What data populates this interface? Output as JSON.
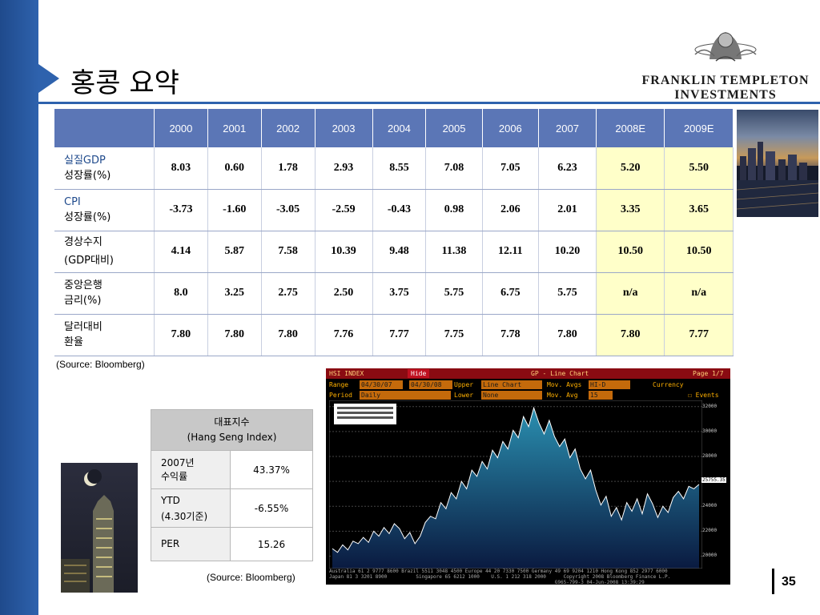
{
  "title": "홍콩 요약",
  "logo": {
    "line1": "FRANKLIN TEMPLETON",
    "line2": "INVESTMENTS"
  },
  "econ_table": {
    "headers": [
      "2000",
      "2001",
      "2002",
      "2003",
      "2004",
      "2005",
      "2006",
      "2007",
      "2008E",
      "2009E"
    ],
    "rows": [
      {
        "label1": "실질GDP",
        "label2": "성장률(%)",
        "values": [
          "8.03",
          "0.60",
          "1.78",
          "2.93",
          "8.55",
          "7.08",
          "7.05",
          "6.23",
          "5.20",
          "5.50"
        ]
      },
      {
        "label1": "CPI",
        "label2": "성장률(%)",
        "values": [
          "-3.73",
          "-1.60",
          "-3.05",
          "-2.59",
          "-0.43",
          "0.98",
          "2.06",
          "2.01",
          "3.35",
          "3.65"
        ]
      },
      {
        "label1": "경상수지",
        "label2": "(GDP대비)",
        "values": [
          "4.14",
          "5.87",
          "7.58",
          "10.39",
          "9.48",
          "11.38",
          "12.11",
          "10.20",
          "10.50",
          "10.50"
        ]
      },
      {
        "label1": "중앙은행",
        "label2": "금리(%)",
        "values": [
          "8.0",
          "3.25",
          "2.75",
          "2.50",
          "3.75",
          "5.75",
          "6.75",
          "5.75",
          "n/a",
          "n/a"
        ]
      },
      {
        "label1": "달러대비",
        "label2": "환율",
        "values": [
          "7.80",
          "7.80",
          "7.80",
          "7.76",
          "7.77",
          "7.75",
          "7.78",
          "7.80",
          "7.80",
          "7.77"
        ]
      }
    ],
    "source": "(Source: Bloomberg)"
  },
  "hsi_table": {
    "header1": "대표지수",
    "header2": "(Hang Seng Index)",
    "rows": [
      {
        "key1": "2007년",
        "key2": "수익률",
        "value": "43.37%"
      },
      {
        "key1": "YTD",
        "key2": "(4.30기준)",
        "value": "-6.55%"
      },
      {
        "key1": "PER",
        "key2": "",
        "value": "15.26"
      }
    ],
    "source": "(Source: Bloomberg)"
  },
  "bloomberg": {
    "ticker": "HSI INDEX",
    "hide": "Hide",
    "chart_title": "GP - Line Chart",
    "page": "Page 1/7",
    "range_label": "Range",
    "range_from": "04/30/07",
    "range_to": "04/30/08",
    "upper_label": "Upper",
    "upper_value": "Line Chart",
    "mov_avgs_label": "Mov. Avgs",
    "mov_avgs_value": "HI-D",
    "currency_label": "Currency",
    "period_label": "Period",
    "period_value": "Daily",
    "lower_label": "Lower",
    "lower_value": "None",
    "mov_avg_label": "Mov. Avg",
    "mov_avg_value": "15",
    "events_label": "Events",
    "last_price_value": "25755.35",
    "y_ticks": [
      "32000",
      "30000",
      "28000",
      "26000",
      "24000",
      "22000",
      "20000"
    ],
    "footer1": "Australia 61 2 9777 8600 Brazil 5511 3048 4500 Europe 44 20 7330 7500 Germany 49 69 9204 1210 Hong Kong 852 2977 6000",
    "footer2": "Japan 81 3 3201 8900          Singapore 65 6212 1000    U.S. 1 212 318 2000      Copyright 2008 Bloomberg Finance L.P.",
    "footer3": "                                                                              G965-799-3 04-Jun-2008 13:39:29"
  },
  "chart_data": {
    "type": "area",
    "title": "GP - Line Chart",
    "ylim": [
      19000,
      32500
    ],
    "yticks": [
      20000,
      22000,
      24000,
      26000,
      28000,
      30000,
      32000
    ],
    "values": [
      20600,
      20300,
      20900,
      20500,
      21200,
      21000,
      21500,
      21100,
      22000,
      21600,
      22300,
      21800,
      22600,
      22200,
      21400,
      21900,
      21000,
      21600,
      22700,
      23200,
      23000,
      24300,
      23800,
      25100,
      24600,
      26000,
      25400,
      26900,
      26400,
      27600,
      27000,
      28500,
      27900,
      29200,
      28600,
      30100,
      29500,
      31200,
      30400,
      31900,
      30700,
      29800,
      30900,
      29600,
      28800,
      29400,
      27900,
      28600,
      27000,
      26200,
      26900,
      25300,
      24100,
      24800,
      23200,
      23900,
      22900,
      24300,
      23600,
      24600,
      23400,
      25000,
      24200,
      23100,
      24000,
      23500,
      24700,
      25200,
      24600,
      25600,
      25400,
      25755
    ]
  },
  "page_number": "35"
}
